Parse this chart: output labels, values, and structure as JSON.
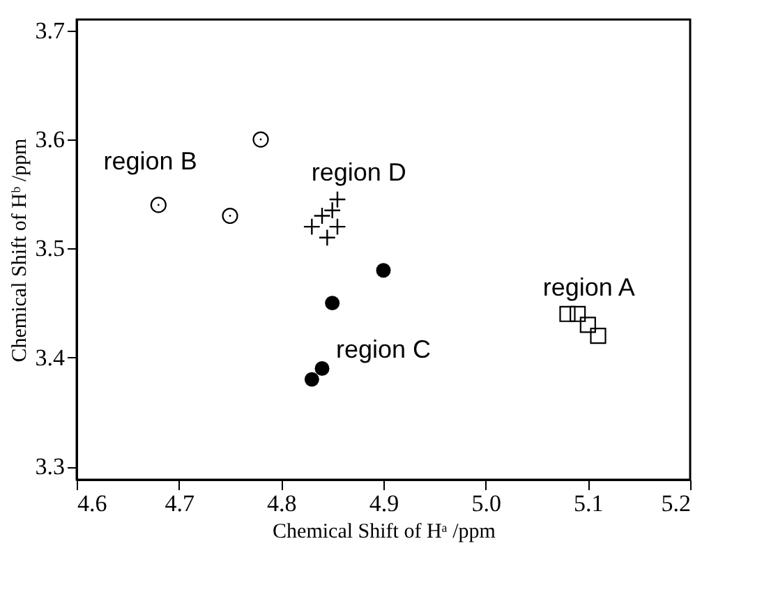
{
  "chart_data": {
    "type": "scatter",
    "xlabel": "Chemical Shift of Hᵃ /ppm",
    "ylabel": "Chemical Shift of Hᵇ /ppm",
    "xlim": [
      4.6,
      5.2
    ],
    "ylim": [
      3.288,
      3.71
    ],
    "xticks": [
      4.6,
      4.7,
      4.8,
      4.9,
      {
        "value": 5.0,
        "label": "5.0"
      },
      5.1,
      5.2
    ],
    "yticks": [
      3.3,
      3.4,
      3.5,
      3.6,
      3.7
    ],
    "grid": false,
    "series": [
      {
        "color": "#000000",
        "marker": "square",
        "x": [
          5.08,
          5.09,
          5.1,
          5.11
        ],
        "values": [
          3.44,
          3.44,
          3.43,
          3.42
        ]
      },
      {
        "color": "#000000",
        "marker": "circle",
        "x": [
          4.68,
          4.75,
          4.78
        ],
        "values": [
          3.54,
          3.53,
          3.6
        ]
      },
      {
        "color": "#000000",
        "marker": "circle",
        "x": [
          4.83,
          4.84,
          4.85,
          4.9
        ],
        "values": [
          3.38,
          3.39,
          3.45,
          3.48
        ]
      },
      {
        "color": "#000000",
        "marker": "cross",
        "x": [
          4.83,
          4.84,
          4.845,
          4.85,
          4.855,
          4.855
        ],
        "values": [
          3.52,
          3.53,
          3.51,
          3.535,
          3.545,
          3.52
        ]
      }
    ],
    "annotations": [
      "region A",
      "region B",
      "region C",
      "region D"
    ]
  }
}
